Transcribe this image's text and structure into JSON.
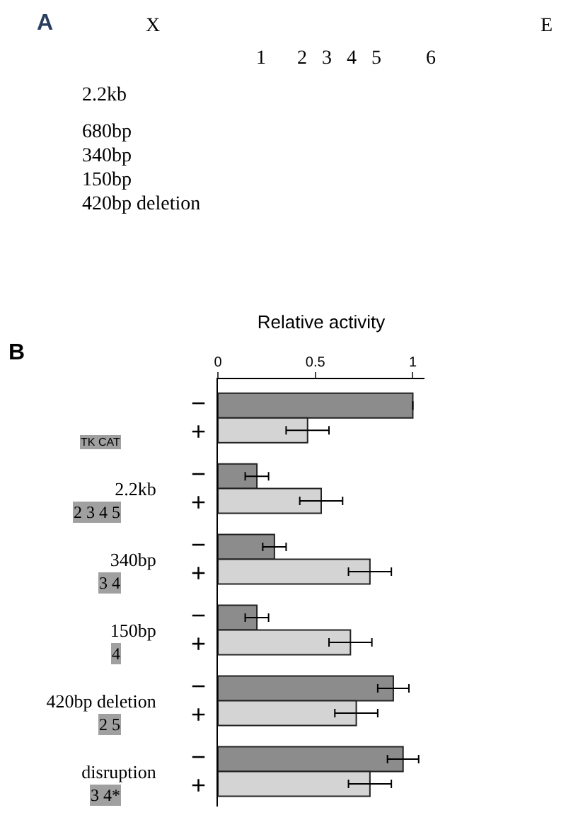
{
  "chart_data": [
    {
      "type": "other",
      "title": "A",
      "annotations": [
        "X",
        "E",
        "1",
        "2   3   4   5",
        "6",
        "2.2kb",
        "680bp",
        "340bp",
        "150bp",
        "420bp deletion"
      ]
    },
    {
      "type": "bar",
      "orientation": "horizontal",
      "title": "B",
      "xlabel": "Relative activity",
      "categories": [
        null,
        "2.2kb",
        "340bp",
        "150bp",
        "420bp deletion",
        "disruption"
      ],
      "annotations": [
        "TK CAT",
        "2 3 4 5",
        "3 4",
        "4",
        "2 5",
        "3 4*"
      ],
      "series": [
        {
          "name": "−",
          "color": "#8c8c8c",
          "values": [
            1.0,
            0.2,
            0.29,
            0.2,
            0.9,
            0.95
          ],
          "errors": [
            null,
            0.06,
            0.06,
            0.06,
            0.08,
            0.08
          ]
        },
        {
          "name": "+",
          "color": "#d4d4d4",
          "values": [
            0.46,
            0.53,
            0.78,
            0.68,
            0.71,
            0.78
          ],
          "errors": [
            0.11,
            0.11,
            0.11,
            0.11,
            0.11,
            0.11
          ]
        }
      ],
      "xlim": [
        0,
        1.06
      ],
      "xticks": [
        0,
        0.5,
        1
      ]
    }
  ]
}
